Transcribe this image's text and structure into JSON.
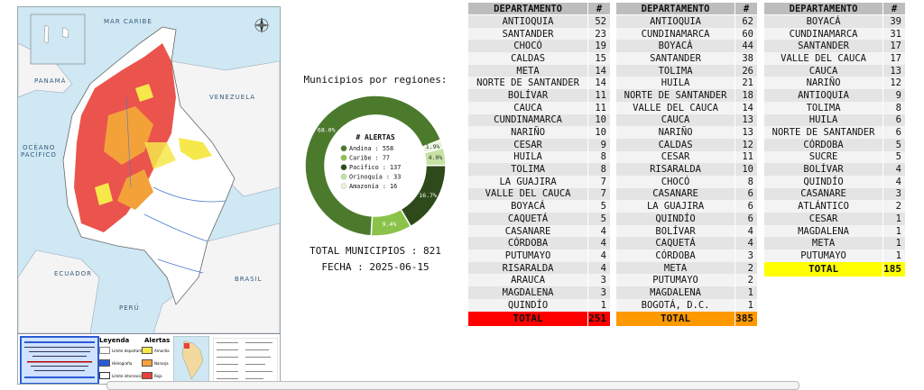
{
  "map": {
    "sea_label": "MAR CARIBE",
    "countries": [
      "PANAMÁ",
      "VENEZUELA",
      "OCÉANO",
      "PACÍFICO",
      "ECUADOR",
      "BRASIL",
      "PERÚ"
    ],
    "legend_title": "Leyenda",
    "legend_items": [
      "Límite departamental",
      "Hidrografía",
      "Límite internacional"
    ],
    "alert_title": "Alertas",
    "alert_items": [
      "Amarilla",
      "Naranja",
      "Roja"
    ],
    "colors": {
      "roja": "#e8413a",
      "naranja": "#f3a23a",
      "amarilla": "#f6e84a",
      "water": "#cfe8f3",
      "land": "#ffffff"
    }
  },
  "donut": {
    "title": "Municipios por regiones:",
    "center_title": "# ALERTAS",
    "segments": [
      {
        "name": "Andina",
        "value": 558,
        "pct_label": "68.0%",
        "color": "#4c7a2c"
      },
      {
        "name": "Caribe",
        "value": 77,
        "pct_label": "9.4%",
        "color": "#8bc34a"
      },
      {
        "name": "Pacífico",
        "value": 137,
        "pct_label": "16.7%",
        "color": "#2e4a1a"
      },
      {
        "name": "Orinoquía",
        "value": 33,
        "pct_label": "4.0%",
        "color": "#c5e1a5"
      },
      {
        "name": "Amazonía",
        "value": 16,
        "pct_label": "1.9%",
        "color": "#e8f2dc"
      }
    ],
    "legend_sep": " : "
  },
  "stats": {
    "total_label": "TOTAL MUNICIPIOS : 821",
    "date_label": "FECHA : 2025-06-15"
  },
  "tables": [
    {
      "header": [
        "DEPARTAMENTO",
        "#"
      ],
      "rows": [
        [
          "ANTIOQUIA",
          "52"
        ],
        [
          "SANTANDER",
          "23"
        ],
        [
          "CHOCÓ",
          "19"
        ],
        [
          "CALDAS",
          "15"
        ],
        [
          "META",
          "14"
        ],
        [
          "NORTE DE SANTANDER",
          "14"
        ],
        [
          "BOLÍVAR",
          "11"
        ],
        [
          "CAUCA",
          "11"
        ],
        [
          "CUNDINAMARCA",
          "10"
        ],
        [
          "NARIÑO",
          "10"
        ],
        [
          "CESAR",
          "9"
        ],
        [
          "HUILA",
          "8"
        ],
        [
          "TOLIMA",
          "8"
        ],
        [
          "LA GUAJIRA",
          "7"
        ],
        [
          "VALLE DEL CAUCA",
          "7"
        ],
        [
          "BOYACÁ",
          "5"
        ],
        [
          "CAQUETÁ",
          "5"
        ],
        [
          "CASANARE",
          "4"
        ],
        [
          "CÓRDOBA",
          "4"
        ],
        [
          "PUTUMAYO",
          "4"
        ],
        [
          "RISARALDA",
          "4"
        ],
        [
          "ARAUCA",
          "3"
        ],
        [
          "MAGDALENA",
          "3"
        ],
        [
          "QUINDÍO",
          "1"
        ]
      ],
      "total_label": "TOTAL",
      "total_value": "251",
      "total_color": "#ff0000"
    },
    {
      "header": [
        "DEPARTAMENTO",
        "#"
      ],
      "rows": [
        [
          "ANTIOQUIA",
          "62"
        ],
        [
          "CUNDINAMARCA",
          "60"
        ],
        [
          "BOYACÁ",
          "44"
        ],
        [
          "SANTANDER",
          "38"
        ],
        [
          "TOLIMA",
          "26"
        ],
        [
          "HUILA",
          "21"
        ],
        [
          "NORTE DE SANTANDER",
          "18"
        ],
        [
          "VALLE DEL CAUCA",
          "14"
        ],
        [
          "CAUCA",
          "13"
        ],
        [
          "NARIÑO",
          "13"
        ],
        [
          "CALDAS",
          "12"
        ],
        [
          "CESAR",
          "11"
        ],
        [
          "RISARALDA",
          "10"
        ],
        [
          "CHOCÓ",
          "8"
        ],
        [
          "CASANARE",
          "6"
        ],
        [
          "LA GUAJIRA",
          "6"
        ],
        [
          "QUINDÍO",
          "6"
        ],
        [
          "BOLÍVAR",
          "4"
        ],
        [
          "CAQUETÁ",
          "4"
        ],
        [
          "CÓRDOBA",
          "3"
        ],
        [
          "META",
          "2"
        ],
        [
          "PUTUMAYO",
          "2"
        ],
        [
          "MAGDALENA",
          "1"
        ],
        [
          "BOGOTÁ, D.C.",
          "1"
        ]
      ],
      "total_label": "TOTAL",
      "total_value": "385",
      "total_color": "#ff9900"
    },
    {
      "header": [
        "DEPARTAMENTO",
        "#"
      ],
      "rows": [
        [
          "BOYACÁ",
          "39"
        ],
        [
          "CUNDINAMARCA",
          "31"
        ],
        [
          "SANTANDER",
          "17"
        ],
        [
          "VALLE DEL CAUCA",
          "17"
        ],
        [
          "CAUCA",
          "13"
        ],
        [
          "NARIÑO",
          "12"
        ],
        [
          "ANTIOQUIA",
          "9"
        ],
        [
          "TOLIMA",
          "8"
        ],
        [
          "HUILA",
          "6"
        ],
        [
          "NORTE DE SANTANDER",
          "6"
        ],
        [
          "CÓRDOBA",
          "5"
        ],
        [
          "SUCRE",
          "5"
        ],
        [
          "BOLÍVAR",
          "4"
        ],
        [
          "QUINDÍO",
          "4"
        ],
        [
          "CASANARE",
          "3"
        ],
        [
          "ATLÁNTICO",
          "2"
        ],
        [
          "CESAR",
          "1"
        ],
        [
          "MAGDALENA",
          "1"
        ],
        [
          "META",
          "1"
        ],
        [
          "PUTUMAYO",
          "1"
        ]
      ],
      "total_label": "TOTAL",
      "total_value": "185",
      "total_color": "#ffff00"
    }
  ]
}
